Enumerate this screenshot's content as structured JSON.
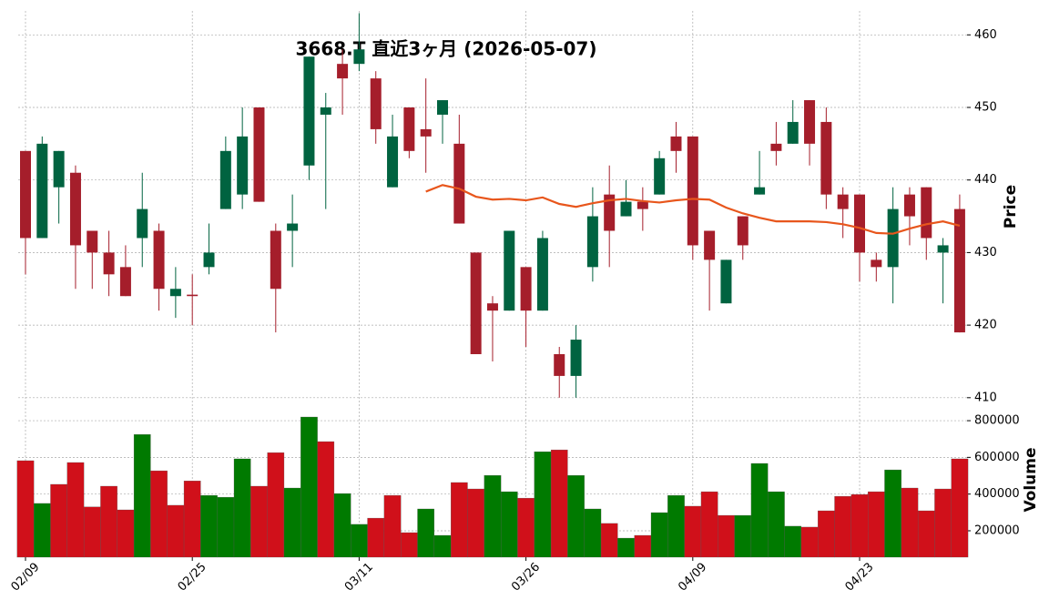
{
  "chart_data": {
    "type": "candlestick",
    "title": "3668.T  直近3ヶ月 (2026-05-07)",
    "y_label": "Price",
    "x": [
      "02/09",
      null,
      null,
      null,
      null,
      null,
      null,
      null,
      null,
      null,
      "02/25",
      null,
      null,
      null,
      null,
      null,
      null,
      null,
      null,
      null,
      "03/11",
      null,
      null,
      null,
      null,
      null,
      null,
      null,
      null,
      null,
      "03/26",
      null,
      null,
      null,
      null,
      null,
      null,
      null,
      null,
      null,
      "04/09",
      null,
      null,
      null,
      null,
      null,
      null,
      null,
      null,
      null,
      "04/23",
      null,
      null,
      null,
      null,
      null,
      null
    ],
    "open": [
      444,
      432,
      439,
      441,
      433,
      430,
      428,
      432,
      433,
      424,
      424.2,
      428,
      436,
      438,
      450,
      433,
      433,
      442,
      449,
      456,
      456,
      454,
      439,
      450,
      447,
      449,
      445,
      430,
      423,
      422,
      428,
      422,
      416,
      413,
      428,
      438,
      435,
      437,
      438,
      446,
      446,
      433,
      423,
      435,
      438,
      445,
      445,
      451,
      448,
      438,
      438,
      429,
      428,
      438,
      439,
      430,
      436
    ],
    "high": [
      444,
      446,
      444,
      442,
      433,
      433,
      431,
      441,
      434,
      428,
      427,
      434,
      446,
      450,
      450,
      434,
      438,
      457,
      452,
      458,
      463,
      455,
      449,
      450,
      454,
      451,
      449,
      430,
      424,
      433,
      428,
      433,
      417,
      420,
      439,
      442,
      440,
      439,
      444,
      448,
      446,
      433,
      429,
      435,
      444,
      448,
      451,
      451,
      450,
      439,
      438,
      430,
      439,
      439,
      439,
      432,
      438
    ],
    "low": [
      427,
      432,
      434,
      425,
      425,
      424,
      424,
      428,
      422,
      421,
      420,
      427,
      436,
      436,
      437,
      419,
      428,
      440,
      436,
      449,
      455,
      445,
      439,
      443,
      441,
      445,
      434,
      416,
      415,
      422,
      417,
      422,
      410,
      410,
      426,
      428,
      435,
      433,
      438,
      441,
      429,
      422,
      423,
      429,
      438,
      442,
      445,
      442,
      436,
      432,
      426,
      426,
      423,
      431,
      429,
      423,
      419
    ],
    "close": [
      432,
      445,
      444,
      431,
      430,
      427,
      424,
      436,
      425,
      425,
      424,
      430,
      444,
      446,
      437,
      425,
      434,
      457,
      450,
      454,
      458,
      447,
      446,
      444,
      446,
      451,
      434,
      416,
      422,
      433,
      422,
      432,
      413,
      418,
      435,
      433,
      437,
      436,
      443,
      444,
      431,
      429,
      429,
      431,
      439,
      444,
      448,
      445,
      438,
      436,
      430,
      428,
      436,
      435,
      432,
      431,
      419
    ],
    "up_color": "#006340",
    "down_color": "#a51e2b",
    "ylim": [
      409.6,
      463.3
    ],
    "yticks": [
      410,
      420,
      430,
      440,
      450,
      460
    ],
    "grid": true,
    "moving_average": {
      "color": "#e8561c",
      "values": [
        null,
        null,
        null,
        null,
        null,
        null,
        null,
        null,
        null,
        null,
        null,
        null,
        null,
        null,
        null,
        null,
        null,
        null,
        null,
        null,
        null,
        null,
        null,
        null,
        438.4,
        439.3,
        438.8,
        437.7,
        437.3,
        437.4,
        437.2,
        437.6,
        436.7,
        436.3,
        436.8,
        437.2,
        437.4,
        437.1,
        436.9,
        437.2,
        437.4,
        437.3,
        436.2,
        435.4,
        434.8,
        434.3,
        434.3,
        434.3,
        434.2,
        433.9,
        433.4,
        432.7,
        432.6,
        433.3,
        433.9,
        434.3,
        433.7
      ]
    },
    "volume": {
      "label": "Volume",
      "values": [
        582000,
        349000,
        453000,
        572000,
        330000,
        443000,
        314000,
        725000,
        527000,
        339000,
        472000,
        393000,
        383000,
        592000,
        443000,
        626000,
        433000,
        820000,
        686000,
        403000,
        235000,
        269000,
        393000,
        190000,
        319000,
        175000,
        463000,
        428000,
        502000,
        413000,
        378000,
        631000,
        641000,
        502000,
        319000,
        240000,
        160000,
        175000,
        299000,
        393000,
        334000,
        413000,
        284000,
        284000,
        567000,
        413000,
        225000,
        220000,
        309000,
        388000,
        398000,
        413000,
        532000,
        433000,
        309000,
        428000,
        592000
      ],
      "colors": [
        "#d0101a",
        "#007a00",
        "#d0101a",
        "#d0101a",
        "#d0101a",
        "#d0101a",
        "#d0101a",
        "#007a00",
        "#d0101a",
        "#d0101a",
        "#d0101a",
        "#007a00",
        "#007a00",
        "#007a00",
        "#d0101a",
        "#d0101a",
        "#007a00",
        "#007a00",
        "#d0101a",
        "#007a00",
        "#007a00",
        "#d0101a",
        "#d0101a",
        "#d0101a",
        "#007a00",
        "#007a00",
        "#d0101a",
        "#d0101a",
        "#007a00",
        "#007a00",
        "#d0101a",
        "#007a00",
        "#d0101a",
        "#007a00",
        "#007a00",
        "#d0101a",
        "#007a00",
        "#d0101a",
        "#007a00",
        "#007a00",
        "#d0101a",
        "#d0101a",
        "#d0101a",
        "#007a00",
        "#007a00",
        "#007a00",
        "#007a00",
        "#d0101a",
        "#d0101a",
        "#d0101a",
        "#d0101a",
        "#d0101a",
        "#007a00",
        "#d0101a",
        "#d0101a",
        "#d0101a",
        "#d0101a"
      ],
      "ylim": [
        56000,
        835000
      ],
      "yticks": [
        200000,
        400000,
        600000,
        800000
      ]
    }
  }
}
